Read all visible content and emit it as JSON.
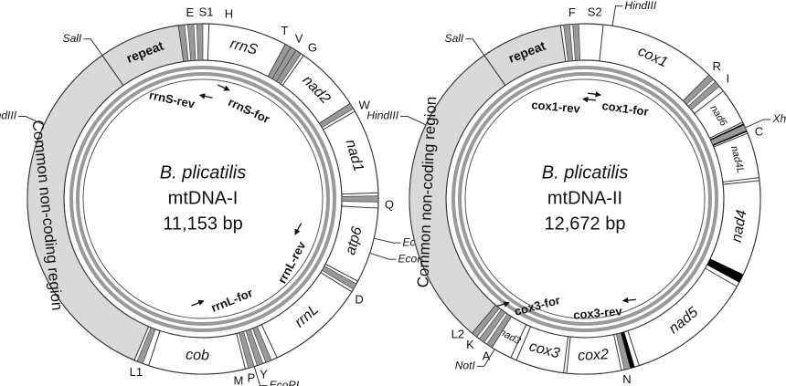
{
  "maps": [
    {
      "title": "B. plicatilis",
      "name": "mtDNA-I",
      "size": "11,153 bp",
      "genes": [
        "repeat",
        "rrnS",
        "nad2",
        "nad1",
        "atp6",
        "rrnL",
        "cob",
        "Common non-coding region"
      ],
      "trnas": [
        "E",
        "S1",
        "H",
        "T",
        "V",
        "G",
        "W",
        "Q",
        "D",
        "Y",
        "P",
        "M",
        "L1"
      ],
      "sites": [
        "SalI",
        "HindIII",
        "EcoRI",
        "EcoRI",
        "EcoRI"
      ],
      "primers": [
        "rrnS-rev",
        "rrnS-for",
        "rrnL-rev",
        "rrnL-for"
      ]
    },
    {
      "title": "B. plicatilis",
      "name": "mtDNA-II",
      "size": "12,672 bp",
      "genes": [
        "repeat",
        "cox1",
        "nad6",
        "nad4L",
        "nad4",
        "nad5",
        "cox2",
        "cox3",
        "nad3",
        "Common non-coding region"
      ],
      "trnas": [
        "F",
        "S2",
        "R",
        "I",
        "C",
        "N",
        "A",
        "K",
        "L2"
      ],
      "sites": [
        "HindIII",
        "SalI",
        "HindIII",
        "Xho",
        "NotI"
      ],
      "primers": [
        "cox1-rev",
        "cox1-for",
        "cox3-for",
        "cox3-rev"
      ]
    }
  ]
}
